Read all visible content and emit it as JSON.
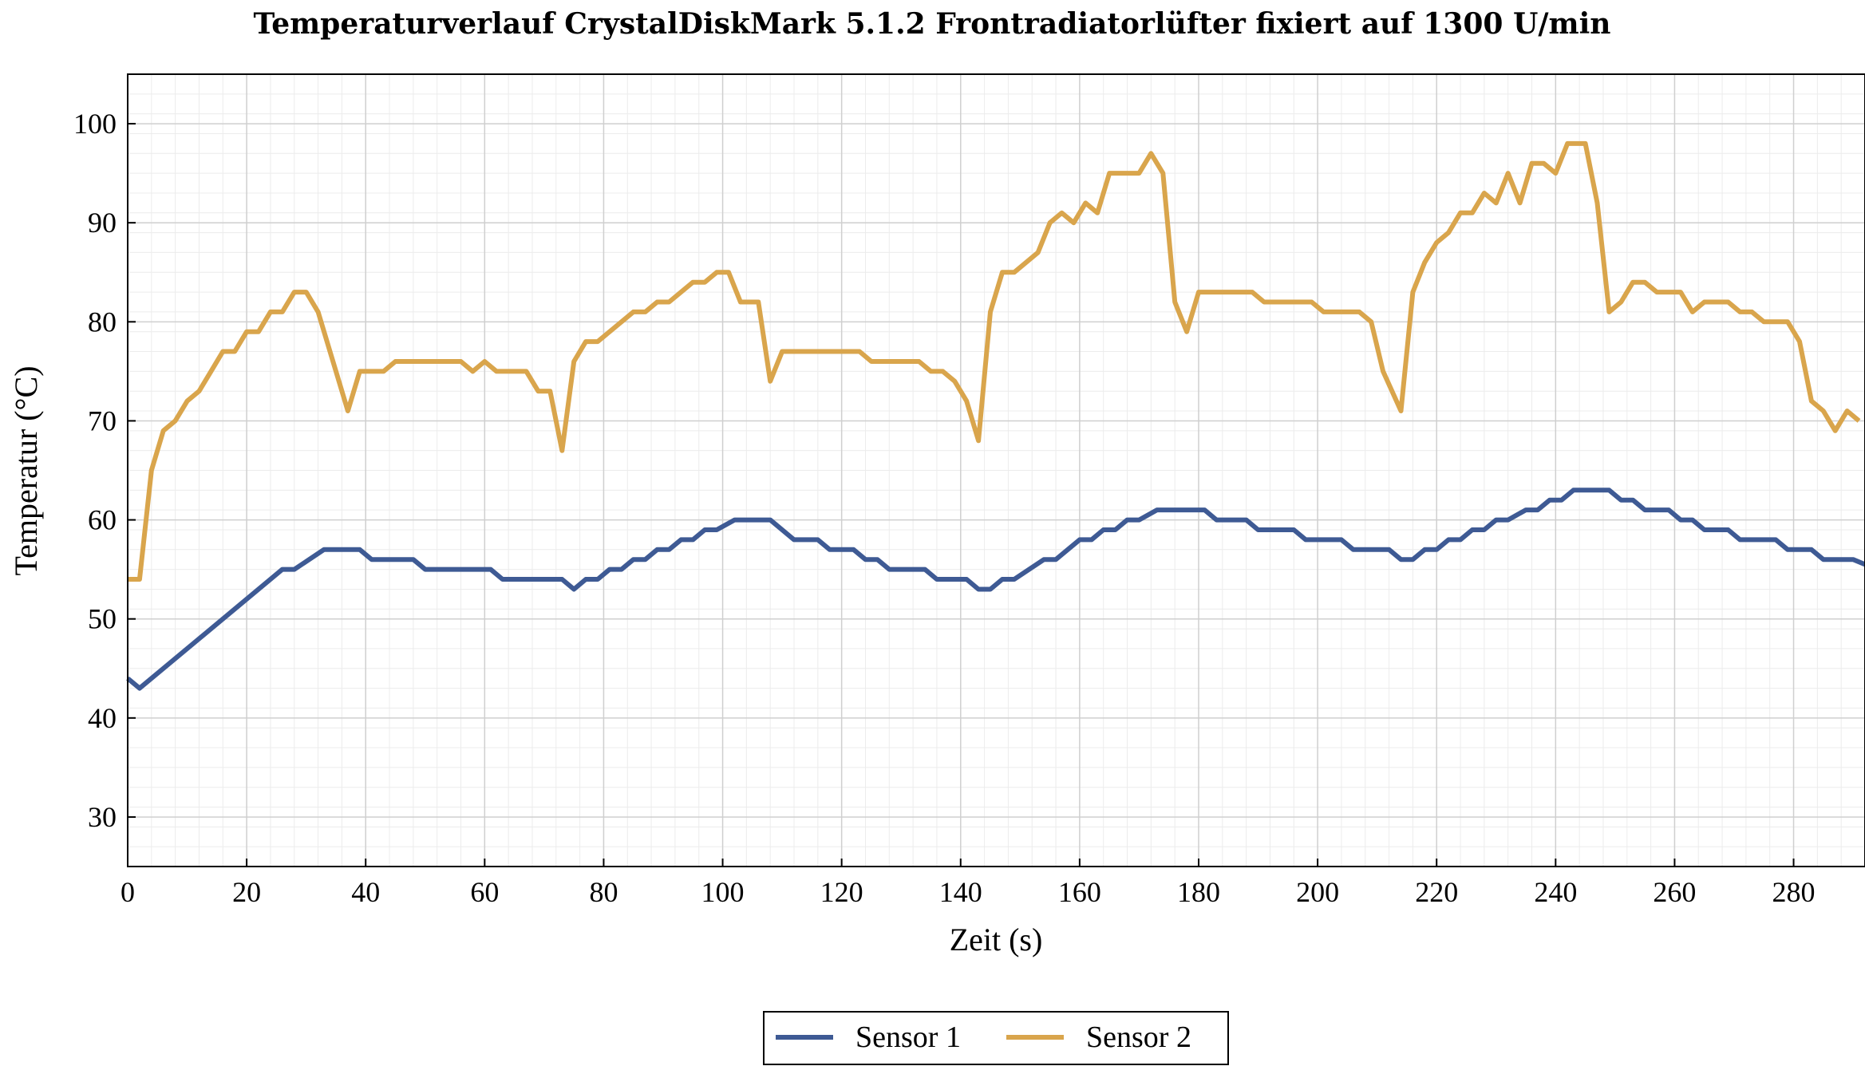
{
  "chart_data": {
    "type": "line",
    "title": "Temperaturverlauf CrystalDiskMark 5.1.2 Frontradiatorlüfter fixiert auf 1300 U/min",
    "xlabel": "Zeit (s)",
    "ylabel": "Temperatur (°C)",
    "xlim": [
      0,
      292
    ],
    "ylim": [
      25,
      105
    ],
    "x_ticks": [
      0,
      20,
      40,
      60,
      80,
      100,
      120,
      140,
      160,
      180,
      200,
      220,
      240,
      260,
      280
    ],
    "y_ticks": [
      30,
      40,
      50,
      60,
      70,
      80,
      90,
      100
    ],
    "grid": true,
    "legend_position": "bottom-center",
    "series": [
      {
        "name": "Sensor 1",
        "color": "#3e5a94",
        "points": [
          [
            0,
            44
          ],
          [
            2,
            43
          ],
          [
            26,
            55
          ],
          [
            28,
            55
          ],
          [
            33,
            57
          ],
          [
            39,
            57
          ],
          [
            41,
            56
          ],
          [
            48,
            56
          ],
          [
            50,
            55
          ],
          [
            61,
            55
          ],
          [
            63,
            54
          ],
          [
            73,
            54
          ],
          [
            75,
            53
          ],
          [
            77,
            54
          ],
          [
            79,
            54
          ],
          [
            81,
            55
          ],
          [
            83,
            55
          ],
          [
            85,
            56
          ],
          [
            87,
            56
          ],
          [
            89,
            57
          ],
          [
            91,
            57
          ],
          [
            93,
            58
          ],
          [
            95,
            58
          ],
          [
            97,
            59
          ],
          [
            99,
            59
          ],
          [
            102,
            60
          ],
          [
            108,
            60
          ],
          [
            112,
            58
          ],
          [
            116,
            58
          ],
          [
            118,
            57
          ],
          [
            122,
            57
          ],
          [
            124,
            56
          ],
          [
            126,
            56
          ],
          [
            128,
            55
          ],
          [
            134,
            55
          ],
          [
            136,
            54
          ],
          [
            141,
            54
          ],
          [
            143,
            53
          ],
          [
            145,
            53
          ],
          [
            147,
            54
          ],
          [
            149,
            54
          ],
          [
            154,
            56
          ],
          [
            156,
            56
          ],
          [
            160,
            58
          ],
          [
            162,
            58
          ],
          [
            164,
            59
          ],
          [
            166,
            59
          ],
          [
            168,
            60
          ],
          [
            170,
            60
          ],
          [
            173,
            61
          ],
          [
            181,
            61
          ],
          [
            183,
            60
          ],
          [
            188,
            60
          ],
          [
            190,
            59
          ],
          [
            196,
            59
          ],
          [
            198,
            58
          ],
          [
            204,
            58
          ],
          [
            206,
            57
          ],
          [
            212,
            57
          ],
          [
            214,
            56
          ],
          [
            216,
            56
          ],
          [
            218,
            57
          ],
          [
            220,
            57
          ],
          [
            222,
            58
          ],
          [
            224,
            58
          ],
          [
            226,
            59
          ],
          [
            228,
            59
          ],
          [
            230,
            60
          ],
          [
            232,
            60
          ],
          [
            235,
            61
          ],
          [
            237,
            61
          ],
          [
            239,
            62
          ],
          [
            241,
            62
          ],
          [
            243,
            63
          ],
          [
            249,
            63
          ],
          [
            251,
            62
          ],
          [
            253,
            62
          ],
          [
            255,
            61
          ],
          [
            259,
            61
          ],
          [
            261,
            60
          ],
          [
            263,
            60
          ],
          [
            265,
            59
          ],
          [
            269,
            59
          ],
          [
            271,
            58
          ],
          [
            277,
            58
          ],
          [
            279,
            57
          ],
          [
            283,
            57
          ],
          [
            285,
            56
          ],
          [
            290,
            56
          ],
          [
            292,
            55.5
          ]
        ]
      },
      {
        "name": "Sensor 2",
        "color": "#d9a54c",
        "points": [
          [
            0,
            54
          ],
          [
            2,
            54
          ],
          [
            4,
            65
          ],
          [
            6,
            69
          ],
          [
            8,
            70
          ],
          [
            10,
            72
          ],
          [
            12,
            73
          ],
          [
            14,
            75
          ],
          [
            16,
            77
          ],
          [
            18,
            77
          ],
          [
            20,
            79
          ],
          [
            22,
            79
          ],
          [
            24,
            81
          ],
          [
            26,
            81
          ],
          [
            28,
            83
          ],
          [
            30,
            83
          ],
          [
            32,
            81
          ],
          [
            34,
            77
          ],
          [
            37,
            71
          ],
          [
            39,
            75
          ],
          [
            43,
            75
          ],
          [
            45,
            76
          ],
          [
            56,
            76
          ],
          [
            58,
            75
          ],
          [
            60,
            76
          ],
          [
            62,
            75
          ],
          [
            67,
            75
          ],
          [
            69,
            73
          ],
          [
            71,
            73
          ],
          [
            73,
            67
          ],
          [
            75,
            76
          ],
          [
            77,
            78
          ],
          [
            79,
            78
          ],
          [
            81,
            79
          ],
          [
            83,
            80
          ],
          [
            85,
            81
          ],
          [
            87,
            81
          ],
          [
            89,
            82
          ],
          [
            91,
            82
          ],
          [
            93,
            83
          ],
          [
            95,
            84
          ],
          [
            97,
            84
          ],
          [
            99,
            85
          ],
          [
            101,
            85
          ],
          [
            103,
            82
          ],
          [
            106,
            82
          ],
          [
            108,
            74
          ],
          [
            110,
            77
          ],
          [
            123,
            77
          ],
          [
            125,
            76
          ],
          [
            133,
            76
          ],
          [
            135,
            75
          ],
          [
            137,
            75
          ],
          [
            139,
            74
          ],
          [
            141,
            72
          ],
          [
            143,
            68
          ],
          [
            145,
            81
          ],
          [
            147,
            85
          ],
          [
            149,
            85
          ],
          [
            153,
            87
          ],
          [
            155,
            90
          ],
          [
            157,
            91
          ],
          [
            159,
            90
          ],
          [
            161,
            92
          ],
          [
            163,
            91
          ],
          [
            165,
            95
          ],
          [
            170,
            95
          ],
          [
            172,
            97
          ],
          [
            174,
            95
          ],
          [
            176,
            82
          ],
          [
            178,
            79
          ],
          [
            180,
            83
          ],
          [
            189,
            83
          ],
          [
            191,
            82
          ],
          [
            199,
            82
          ],
          [
            201,
            81
          ],
          [
            207,
            81
          ],
          [
            209,
            80
          ],
          [
            211,
            75
          ],
          [
            214,
            71
          ],
          [
            216,
            83
          ],
          [
            218,
            86
          ],
          [
            220,
            88
          ],
          [
            222,
            89
          ],
          [
            224,
            91
          ],
          [
            226,
            91
          ],
          [
            228,
            93
          ],
          [
            230,
            92
          ],
          [
            232,
            95
          ],
          [
            234,
            92
          ],
          [
            236,
            96
          ],
          [
            238,
            96
          ],
          [
            240,
            95
          ],
          [
            242,
            98
          ],
          [
            245,
            98
          ],
          [
            247,
            92
          ],
          [
            249,
            81
          ],
          [
            251,
            82
          ],
          [
            253,
            84
          ],
          [
            255,
            84
          ],
          [
            257,
            83
          ],
          [
            261,
            83
          ],
          [
            263,
            81
          ],
          [
            265,
            82
          ],
          [
            269,
            82
          ],
          [
            271,
            81
          ],
          [
            273,
            81
          ],
          [
            275,
            80
          ],
          [
            279,
            80
          ],
          [
            281,
            78
          ],
          [
            283,
            72
          ],
          [
            285,
            71
          ],
          [
            287,
            69
          ],
          [
            289,
            71
          ],
          [
            291,
            70
          ]
        ]
      }
    ]
  }
}
